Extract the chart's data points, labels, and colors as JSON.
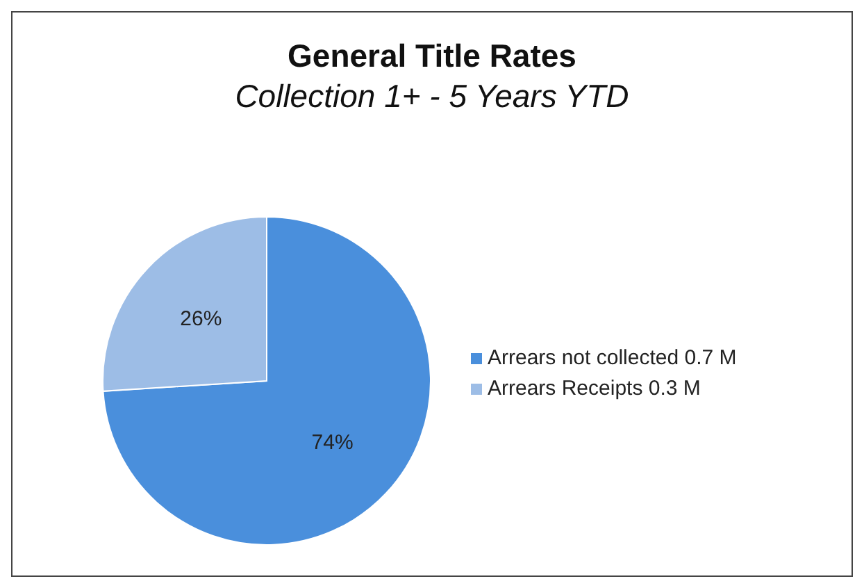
{
  "chart_data": {
    "type": "pie",
    "title": "General Title Rates",
    "subtitle": "Collection 1+ - 5 Years YTD",
    "categories": [
      "Arrears not collected 0.7 M",
      "Arrears Receipts 0.3 M"
    ],
    "values": [
      74,
      26
    ],
    "colors": [
      "#4a8fdc",
      "#9dbde6"
    ],
    "value_labels": [
      "74%",
      "26%"
    ],
    "legend": "right"
  }
}
